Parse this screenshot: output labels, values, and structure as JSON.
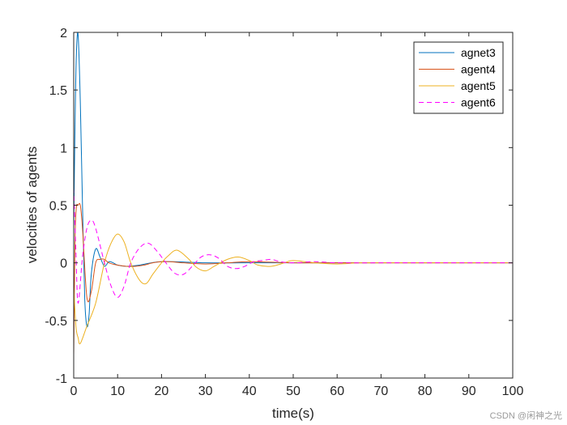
{
  "chart_data": {
    "type": "line",
    "xlabel": "time(s)",
    "ylabel": "velocities of agents",
    "xlim": [
      0,
      100
    ],
    "ylim": [
      -1,
      2
    ],
    "xticks": [
      0,
      10,
      20,
      30,
      40,
      50,
      60,
      70,
      80,
      90,
      100
    ],
    "yticks": [
      -1,
      -0.5,
      0,
      0.5,
      1,
      1.5,
      2
    ],
    "ytick_labels": [
      "-1",
      "-0.5",
      "0",
      "0.5",
      "1",
      "1.5",
      "2"
    ],
    "grid": false,
    "legend_position": "top-right",
    "series": [
      {
        "name": "agnet3",
        "color": "#0072BD",
        "dash": "solid",
        "x": [
          0,
          0.3,
          0.6,
          1,
          1.5,
          2,
          2.5,
          3,
          3.5,
          4,
          5,
          6,
          7,
          8,
          9,
          10,
          12,
          15,
          20,
          30,
          40,
          60,
          80,
          100
        ],
        "y": [
          0.3,
          1.2,
          1.8,
          1.98,
          1.4,
          0.5,
          -0.3,
          -0.55,
          -0.45,
          -0.1,
          0.12,
          0.05,
          -0.03,
          0.01,
          0.0,
          -0.02,
          -0.03,
          -0.02,
          0.01,
          0.0,
          0.0,
          0.0,
          0.0,
          0.0
        ]
      },
      {
        "name": "agent4",
        "color": "#D95319",
        "dash": "solid",
        "x": [
          0,
          0.3,
          0.6,
          1,
          1.5,
          2,
          3,
          4,
          5,
          6,
          7,
          8,
          10,
          12,
          14,
          16,
          18,
          20,
          22,
          25,
          30,
          35,
          40,
          50,
          60,
          80,
          100
        ],
        "y": [
          -0.8,
          0.2,
          0.48,
          0.5,
          0.5,
          0.3,
          -0.3,
          -0.25,
          0.0,
          0.03,
          0.03,
          0.0,
          -0.02,
          -0.03,
          -0.03,
          -0.02,
          0.0,
          0.01,
          0.01,
          0.0,
          -0.01,
          0.0,
          0.01,
          0.0,
          0.0,
          0.0,
          0.0
        ]
      },
      {
        "name": "agent5",
        "color": "#EDB120",
        "dash": "solid",
        "x": [
          0,
          0.5,
          1,
          1.5,
          3,
          5,
          7,
          8.5,
          10,
          11.5,
          13,
          15,
          16.5,
          18,
          20,
          21.5,
          23.5,
          26,
          28,
          30,
          32,
          35,
          37.5,
          40,
          42,
          45,
          48,
          50,
          55,
          60,
          65,
          70,
          80,
          100
        ],
        "y": [
          -0.2,
          -0.55,
          -0.65,
          -0.7,
          -0.55,
          -0.35,
          0.0,
          0.17,
          0.25,
          0.18,
          0.0,
          -0.15,
          -0.18,
          -0.1,
          0.0,
          0.06,
          0.11,
          0.04,
          -0.04,
          -0.07,
          -0.03,
          0.03,
          0.05,
          0.02,
          -0.02,
          -0.03,
          0.0,
          0.02,
          0.0,
          -0.01,
          0.0,
          0.0,
          0.0,
          0.0
        ]
      },
      {
        "name": "agent6",
        "color": "#FF00FF",
        "dash": "dashed",
        "x": [
          0,
          0.5,
          1,
          2,
          3,
          4,
          5,
          7,
          8.5,
          10,
          11.5,
          13,
          15,
          17,
          19,
          21,
          23,
          25,
          27,
          29,
          31,
          33,
          35,
          37,
          39,
          41,
          43,
          45,
          47,
          50,
          55,
          60,
          70,
          80,
          100
        ],
        "y": [
          0.65,
          0.1,
          -0.35,
          0.05,
          0.3,
          0.37,
          0.3,
          0.0,
          -0.2,
          -0.3,
          -0.2,
          0.0,
          0.13,
          0.17,
          0.1,
          0.0,
          -0.09,
          -0.1,
          -0.03,
          0.05,
          0.07,
          0.04,
          -0.03,
          -0.05,
          -0.03,
          0.01,
          0.02,
          0.03,
          0.01,
          0.0,
          0.01,
          0.0,
          0.0,
          0.0,
          0.0
        ]
      }
    ]
  },
  "watermark": "CSDN @闲神之光"
}
